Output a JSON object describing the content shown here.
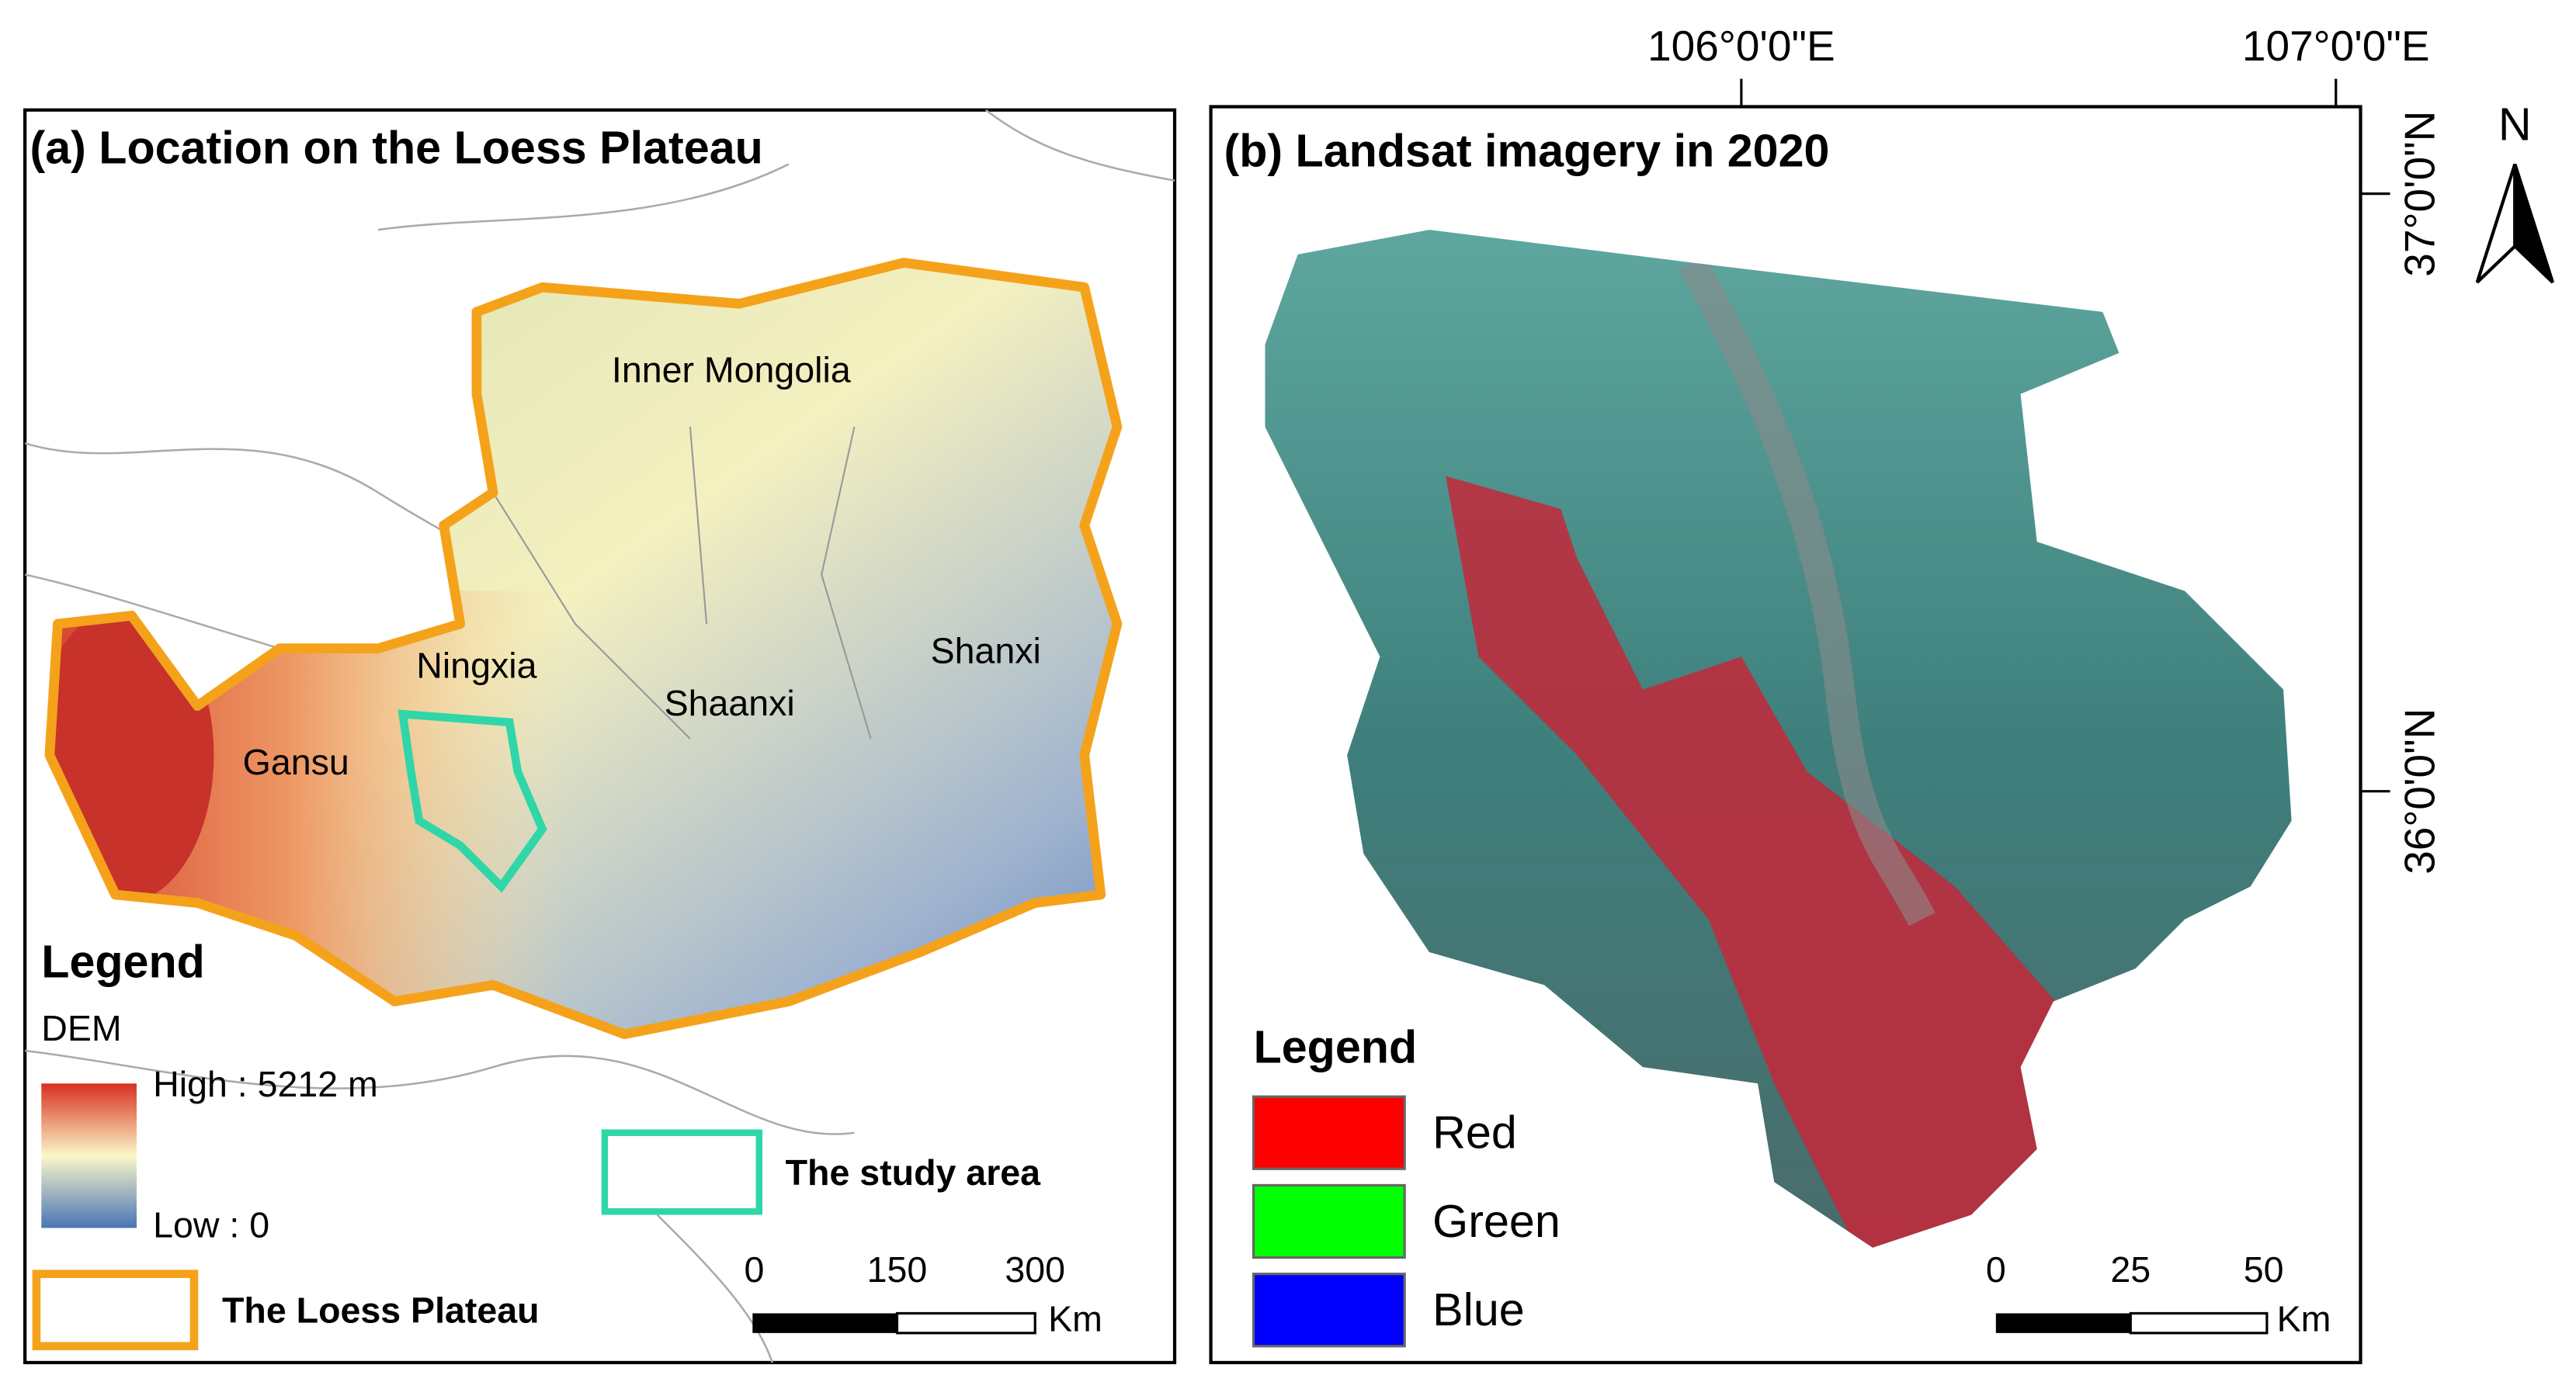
{
  "panel_a": {
    "title": "(a) Location on the Loess Plateau",
    "regions": [
      "Inner Mongolia",
      "Ningxia",
      "Shaanxi",
      "Shanxi",
      "Gansu"
    ],
    "legend": {
      "title": "Legend",
      "dem_label": "DEM",
      "high": "High : 5212 m",
      "low": "Low : 0",
      "loess_plateau": "The Loess Plateau",
      "study_area": "The study area"
    },
    "scale": {
      "ticks": [
        0,
        150,
        300
      ],
      "unit": "Km"
    }
  },
  "panel_b": {
    "title": "(b) Landsat imagery in 2020",
    "legend": {
      "title": "Legend",
      "items": [
        "Red",
        "Green",
        "Blue"
      ]
    },
    "scale": {
      "ticks": [
        0,
        25,
        50
      ],
      "unit": "Km"
    },
    "lon_labels": [
      "106°0'0\"E",
      "107°0'0\"E"
    ],
    "lat_labels": [
      "37°0'0\"N",
      "36°0'0\"N"
    ],
    "north": "N"
  }
}
